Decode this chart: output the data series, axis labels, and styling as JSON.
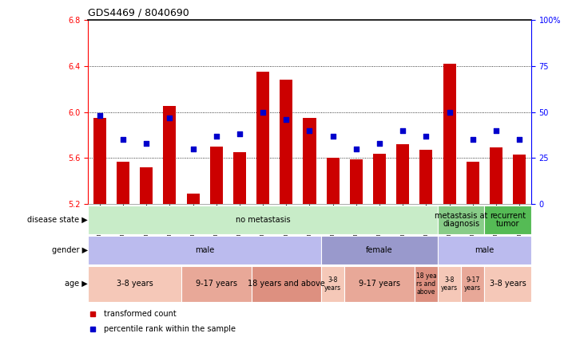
{
  "title": "GDS4469 / 8040690",
  "samples": [
    "GSM1025530",
    "GSM1025531",
    "GSM1025532",
    "GSM1025546",
    "GSM1025535",
    "GSM1025544",
    "GSM1025545",
    "GSM1025537",
    "GSM1025542",
    "GSM1025543",
    "GSM1025540",
    "GSM1025528",
    "GSM1025534",
    "GSM1025541",
    "GSM1025536",
    "GSM1025538",
    "GSM1025533",
    "GSM1025529",
    "GSM1025539"
  ],
  "bar_values": [
    5.95,
    5.57,
    5.52,
    6.05,
    5.29,
    5.7,
    5.65,
    6.35,
    6.28,
    5.95,
    5.6,
    5.59,
    5.64,
    5.72,
    5.67,
    6.42,
    5.57,
    5.69,
    5.63
  ],
  "dot_percentiles": [
    48,
    35,
    33,
    47,
    30,
    37,
    38,
    50,
    46,
    40,
    37,
    30,
    33,
    40,
    37,
    50,
    35,
    40,
    35
  ],
  "ymin": 5.2,
  "ymax": 6.8,
  "yticks": [
    5.2,
    5.6,
    6.0,
    6.4,
    6.8
  ],
  "y2ticks_val": [
    0,
    25,
    50,
    75,
    100
  ],
  "y2ticks_label": [
    "0",
    "25",
    "50",
    "75",
    "100%"
  ],
  "bar_color": "#cc0000",
  "dot_color": "#0000cc",
  "bar_bottom": 5.2,
  "disease_state_blocks": [
    {
      "label": "no metastasis",
      "start": 0,
      "end": 15,
      "color": "#c8ecc8"
    },
    {
      "label": "metastasis at\ndiagnosis",
      "start": 15,
      "end": 17,
      "color": "#88cc88"
    },
    {
      "label": "recurrent\ntumor",
      "start": 17,
      "end": 19,
      "color": "#55bb55"
    }
  ],
  "gender_blocks": [
    {
      "label": "male",
      "start": 0,
      "end": 10,
      "color": "#bbbbee"
    },
    {
      "label": "female",
      "start": 10,
      "end": 15,
      "color": "#9999cc"
    },
    {
      "label": "male",
      "start": 15,
      "end": 19,
      "color": "#bbbbee"
    }
  ],
  "age_blocks": [
    {
      "label": "3-8 years",
      "start": 0,
      "end": 4,
      "color": "#f5c8b8"
    },
    {
      "label": "9-17 years",
      "start": 4,
      "end": 7,
      "color": "#e8a898"
    },
    {
      "label": "18 years and above",
      "start": 7,
      "end": 10,
      "color": "#dd9080"
    },
    {
      "label": "3-8\nyears",
      "start": 10,
      "end": 11,
      "color": "#f5c8b8"
    },
    {
      "label": "9-17 years",
      "start": 11,
      "end": 14,
      "color": "#e8a898"
    },
    {
      "label": "18 yea\nrs and\nabove",
      "start": 14,
      "end": 15,
      "color": "#dd9080"
    },
    {
      "label": "3-8\nyears",
      "start": 15,
      "end": 16,
      "color": "#f5c8b8"
    },
    {
      "label": "9-17\nyears",
      "start": 16,
      "end": 17,
      "color": "#e8a898"
    },
    {
      "label": "3-8 years",
      "start": 17,
      "end": 19,
      "color": "#f5c8b8"
    }
  ],
  "row_labels": [
    "disease state",
    "gender",
    "age"
  ],
  "legend_items": [
    {
      "color": "#cc0000",
      "label": "transformed count"
    },
    {
      "color": "#0000cc",
      "label": "percentile rank within the sample"
    }
  ],
  "title_fontsize": 9,
  "tick_fontsize": 7,
  "sample_fontsize": 5.2,
  "row_label_fontsize": 7,
  "block_fontsize_main": 7,
  "block_fontsize_small": 5.5
}
